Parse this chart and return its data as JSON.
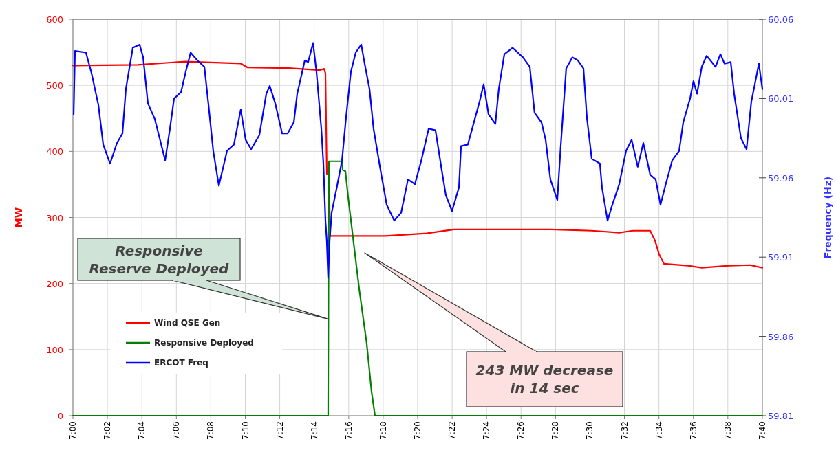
{
  "chart_data": {
    "type": "line",
    "ylabel": "MW",
    "y2label": "Frequency (Hz)",
    "xlim": [
      7,
      7.6667
    ],
    "xticks": [
      {
        "value": 7,
        "label": "7:00"
      },
      {
        "value": 7.0333,
        "label": "7:02"
      },
      {
        "value": 7.0667,
        "label": "7:04"
      },
      {
        "value": 7.1,
        "label": "7:06"
      },
      {
        "value": 7.1333,
        "label": "7:08"
      },
      {
        "value": 7.1667,
        "label": "7:10"
      },
      {
        "value": 7.2,
        "label": "7:12"
      },
      {
        "value": 7.2333,
        "label": "7:14"
      },
      {
        "value": 7.2667,
        "label": "7:16"
      },
      {
        "value": 7.3,
        "label": "7:18"
      },
      {
        "value": 7.3333,
        "label": "7:20"
      },
      {
        "value": 7.3667,
        "label": "7:22"
      },
      {
        "value": 7.4,
        "label": "7:24"
      },
      {
        "value": 7.4333,
        "label": "7:26"
      },
      {
        "value": 7.4667,
        "label": "7:28"
      },
      {
        "value": 7.5,
        "label": "7:30"
      },
      {
        "value": 7.5333,
        "label": "7:32"
      },
      {
        "value": 7.5667,
        "label": "7:34"
      },
      {
        "value": 7.6,
        "label": "7:36"
      },
      {
        "value": 7.6333,
        "label": "7:38"
      },
      {
        "value": 7.6667,
        "label": "7:40"
      }
    ],
    "ylim": [
      0,
      600
    ],
    "yticks": [
      0,
      100,
      200,
      300,
      400,
      500,
      600
    ],
    "y2lim": [
      59.81,
      60.06
    ],
    "y2ticks": [
      59.81,
      59.86,
      59.91,
      59.96,
      60.01,
      60.06
    ],
    "grid": true,
    "legend": "bottom left",
    "series": [
      {
        "name": "Wind QSE Gen",
        "color": "#ff0000",
        "x": [
          7,
          7.0625,
          7.1091,
          7.1623,
          7.169,
          7.2089,
          7.2389,
          7.2429,
          7.2442,
          7.2455,
          7.2475,
          7.2488,
          7.3021,
          7.342,
          7.3686,
          7.4617,
          7.5017,
          7.5283,
          7.5416,
          7.5582,
          7.5629,
          7.5669,
          7.5715,
          7.5948,
          7.6081,
          7.6347,
          7.6547,
          7.6667
        ],
        "values": [
          530,
          531,
          536,
          533,
          527,
          526,
          523,
          525,
          518,
          366,
          366,
          272,
          272,
          276,
          282,
          282,
          280,
          277,
          280,
          280,
          265,
          244,
          230,
          227,
          224,
          227,
          228,
          224
        ]
      },
      {
        "name": "Responsive Deployed",
        "color": "#008000",
        "x": [
          7,
          7.2468,
          7.2475,
          7.2602,
          7.2608,
          7.2635,
          7.2661,
          7.2701,
          7.2768,
          7.2841,
          7.2888,
          7.2921,
          7.6667
        ],
        "values": [
          0,
          0,
          385,
          385,
          372,
          370,
          331,
          279,
          192,
          109,
          36,
          0,
          0
        ]
      },
      {
        "name": "ERCOT Freq",
        "color": "#0000ff",
        "axis": "y2",
        "x": [
          7.0007,
          7.002,
          7.0126,
          7.018,
          7.0246,
          7.0293,
          7.0359,
          7.0426,
          7.0479,
          7.0512,
          7.0579,
          7.0645,
          7.0679,
          7.0725,
          7.0792,
          7.0838,
          7.0892,
          7.0938,
          7.0978,
          7.1045,
          7.1091,
          7.1138,
          7.1204,
          7.1271,
          7.1311,
          7.1357,
          7.1411,
          7.149,
          7.1557,
          7.1623,
          7.167,
          7.1723,
          7.1803,
          7.187,
          7.1903,
          7.1956,
          7.2023,
          7.2076,
          7.2136,
          7.2169,
          7.2242,
          7.2275,
          7.2322,
          7.2355,
          7.2402,
          7.2422,
          7.2442,
          7.2455,
          7.2468,
          7.2482,
          7.2502,
          7.2555,
          7.2602,
          7.2641,
          7.2688,
          7.2735,
          7.2788,
          7.2821,
          7.2868,
          7.2907,
          7.2974,
          7.3034,
          7.3107,
          7.3174,
          7.324,
          7.3307,
          7.3373,
          7.344,
          7.3506,
          7.3566,
          7.3606,
          7.3666,
          7.3733,
          7.3753,
          7.3819,
          7.3886,
          7.3932,
          7.3972,
          7.4019,
          7.4085,
          7.4118,
          7.4172,
          7.4251,
          7.4351,
          7.4418,
          7.4464,
          7.4531,
          7.4571,
          7.4617,
          7.4684,
          7.4717,
          7.477,
          7.483,
          7.4884,
          7.4937,
          7.497,
          7.5017,
          7.5096,
          7.5116,
          7.517,
          7.5216,
          7.5283,
          7.5349,
          7.5403,
          7.5462,
          7.5516,
          7.5582,
          7.5635,
          7.5682,
          7.5729,
          7.5795,
          7.5862,
          7.5902,
          7.5968,
          7.6001,
          7.6035,
          7.6081,
          7.6128,
          7.6214,
          7.6261,
          7.6301,
          7.6361,
          7.6394,
          7.646,
          7.6514,
          7.656,
          7.6594,
          7.6633,
          7.6667
        ],
        "values": [
          60.0,
          60.04,
          60.039,
          60.026,
          60.006,
          59.981,
          59.969,
          59.982,
          59.988,
          60.016,
          60.042,
          60.044,
          60.036,
          60.007,
          59.997,
          59.985,
          59.971,
          59.991,
          60.01,
          60.014,
          60.027,
          60.039,
          60.034,
          60.03,
          60.006,
          59.977,
          59.955,
          59.977,
          59.981,
          60.003,
          59.984,
          59.978,
          59.987,
          60.013,
          60.018,
          60.007,
          59.988,
          59.988,
          59.995,
          60.013,
          60.034,
          60.033,
          60.045,
          60.027,
          59.991,
          59.969,
          59.933,
          59.92,
          59.897,
          59.92,
          59.938,
          59.955,
          59.971,
          59.998,
          60.027,
          60.039,
          60.044,
          60.032,
          60.016,
          59.991,
          59.965,
          59.943,
          59.933,
          59.938,
          59.959,
          59.956,
          59.972,
          59.991,
          59.99,
          59.965,
          59.949,
          59.939,
          59.954,
          59.98,
          59.981,
          59.997,
          60.008,
          60.019,
          60.0,
          59.994,
          60.016,
          60.038,
          60.042,
          60.036,
          60.03,
          60.001,
          59.995,
          59.984,
          59.959,
          59.946,
          59.98,
          60.029,
          60.036,
          60.034,
          60.029,
          59.998,
          59.972,
          59.969,
          59.954,
          59.933,
          59.943,
          59.956,
          59.977,
          59.984,
          59.967,
          59.982,
          59.962,
          59.959,
          59.943,
          59.955,
          59.971,
          59.977,
          59.995,
          60.01,
          60.021,
          60.013,
          60.03,
          60.037,
          60.03,
          60.038,
          60.032,
          60.033,
          60.013,
          59.985,
          59.978,
          60.008,
          60.019,
          60.032,
          60.016
        ]
      }
    ],
    "annotations": [
      {
        "text": "Responsive Reserve Deployed",
        "x": 7.2475,
        "y": 146
      },
      "243 MW decrease in 14 sec"
    ]
  }
}
